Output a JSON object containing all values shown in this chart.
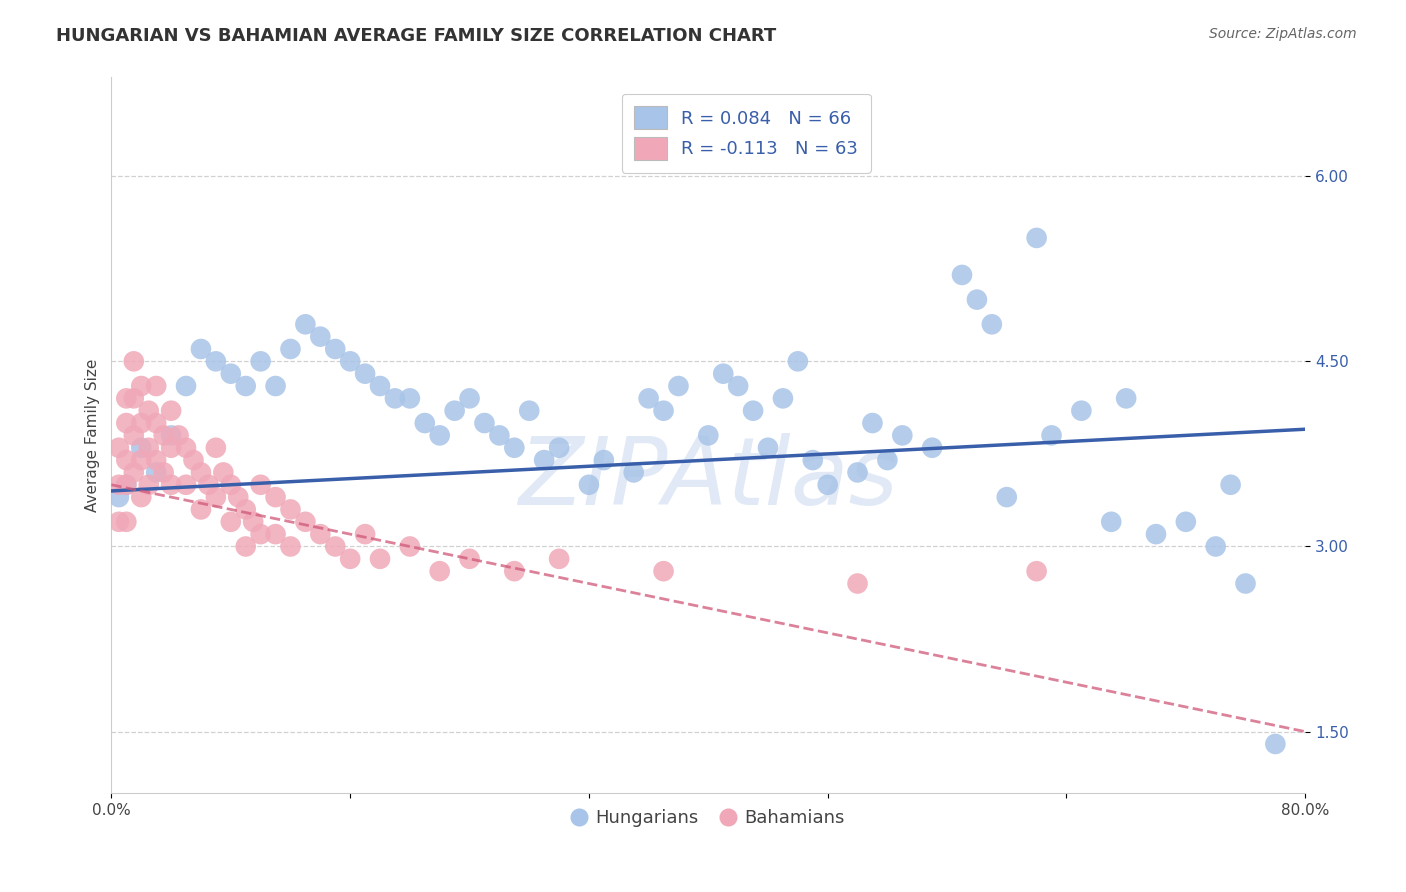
{
  "title": "HUNGARIAN VS BAHAMIAN AVERAGE FAMILY SIZE CORRELATION CHART",
  "source_text": "Source: ZipAtlas.com",
  "ylabel": "Average Family Size",
  "xlim": [
    0.0,
    0.8
  ],
  "ylim": [
    1.0,
    6.8
  ],
  "yticks": [
    1.5,
    3.0,
    4.5,
    6.0
  ],
  "xticks": [
    0.0,
    0.16,
    0.32,
    0.48,
    0.64,
    0.8
  ],
  "xticklabels": [
    "0.0%",
    "",
    "",
    "",
    "",
    "80.0%"
  ],
  "yticklabels": [
    "1.50",
    "3.00",
    "4.50",
    "6.00"
  ],
  "hungarian_R": 0.084,
  "hungarian_N": 66,
  "bahamian_R": -0.113,
  "bahamian_N": 63,
  "hungarian_color": "#a8c4e8",
  "bahamian_color": "#f0a8b8",
  "trend_hungarian_color": "#3a5faa",
  "trend_bahamian_color": "#d05878",
  "background_color": "#ffffff",
  "grid_color": "#cccccc",
  "watermark_color": "#c8d8ee",
  "title_fontsize": 13,
  "axis_label_fontsize": 11,
  "tick_fontsize": 11,
  "legend_fontsize": 13,
  "hungarian_x": [
    0.005,
    0.01,
    0.02,
    0.03,
    0.04,
    0.05,
    0.06,
    0.07,
    0.08,
    0.09,
    0.1,
    0.11,
    0.12,
    0.13,
    0.14,
    0.15,
    0.16,
    0.17,
    0.18,
    0.19,
    0.2,
    0.21,
    0.22,
    0.23,
    0.24,
    0.25,
    0.26,
    0.27,
    0.28,
    0.29,
    0.3,
    0.32,
    0.33,
    0.35,
    0.36,
    0.37,
    0.38,
    0.4,
    0.41,
    0.42,
    0.43,
    0.44,
    0.45,
    0.46,
    0.47,
    0.48,
    0.5,
    0.51,
    0.52,
    0.53,
    0.55,
    0.57,
    0.58,
    0.59,
    0.6,
    0.62,
    0.63,
    0.65,
    0.67,
    0.68,
    0.7,
    0.72,
    0.74,
    0.75,
    0.76,
    0.78
  ],
  "hungarian_y": [
    3.4,
    3.5,
    3.8,
    3.6,
    3.9,
    4.3,
    4.6,
    4.5,
    4.4,
    4.3,
    4.5,
    4.3,
    4.6,
    4.8,
    4.7,
    4.6,
    4.5,
    4.4,
    4.3,
    4.2,
    4.2,
    4.0,
    3.9,
    4.1,
    4.2,
    4.0,
    3.9,
    3.8,
    4.1,
    3.7,
    3.8,
    3.5,
    3.7,
    3.6,
    4.2,
    4.1,
    4.3,
    3.9,
    4.4,
    4.3,
    4.1,
    3.8,
    4.2,
    4.5,
    3.7,
    3.5,
    3.6,
    4.0,
    3.7,
    3.9,
    3.8,
    5.2,
    5.0,
    4.8,
    3.4,
    5.5,
    3.9,
    4.1,
    3.2,
    4.2,
    3.1,
    3.2,
    3.0,
    3.5,
    2.7,
    1.4
  ],
  "bahamian_x": [
    0.005,
    0.005,
    0.005,
    0.01,
    0.01,
    0.01,
    0.01,
    0.01,
    0.015,
    0.015,
    0.015,
    0.015,
    0.02,
    0.02,
    0.02,
    0.02,
    0.025,
    0.025,
    0.025,
    0.03,
    0.03,
    0.03,
    0.035,
    0.035,
    0.04,
    0.04,
    0.04,
    0.045,
    0.05,
    0.05,
    0.055,
    0.06,
    0.06,
    0.065,
    0.07,
    0.07,
    0.075,
    0.08,
    0.08,
    0.085,
    0.09,
    0.09,
    0.095,
    0.1,
    0.1,
    0.11,
    0.11,
    0.12,
    0.12,
    0.13,
    0.14,
    0.15,
    0.16,
    0.17,
    0.18,
    0.2,
    0.22,
    0.24,
    0.27,
    0.3,
    0.37,
    0.5,
    0.62
  ],
  "bahamian_y": [
    3.8,
    3.5,
    3.2,
    4.2,
    4.0,
    3.7,
    3.5,
    3.2,
    4.5,
    4.2,
    3.9,
    3.6,
    4.3,
    4.0,
    3.7,
    3.4,
    4.1,
    3.8,
    3.5,
    4.3,
    4.0,
    3.7,
    3.9,
    3.6,
    4.1,
    3.8,
    3.5,
    3.9,
    3.8,
    3.5,
    3.7,
    3.6,
    3.3,
    3.5,
    3.8,
    3.4,
    3.6,
    3.5,
    3.2,
    3.4,
    3.3,
    3.0,
    3.2,
    3.5,
    3.1,
    3.4,
    3.1,
    3.3,
    3.0,
    3.2,
    3.1,
    3.0,
    2.9,
    3.1,
    2.9,
    3.0,
    2.8,
    2.9,
    2.8,
    2.9,
    2.8,
    2.7,
    2.8
  ]
}
